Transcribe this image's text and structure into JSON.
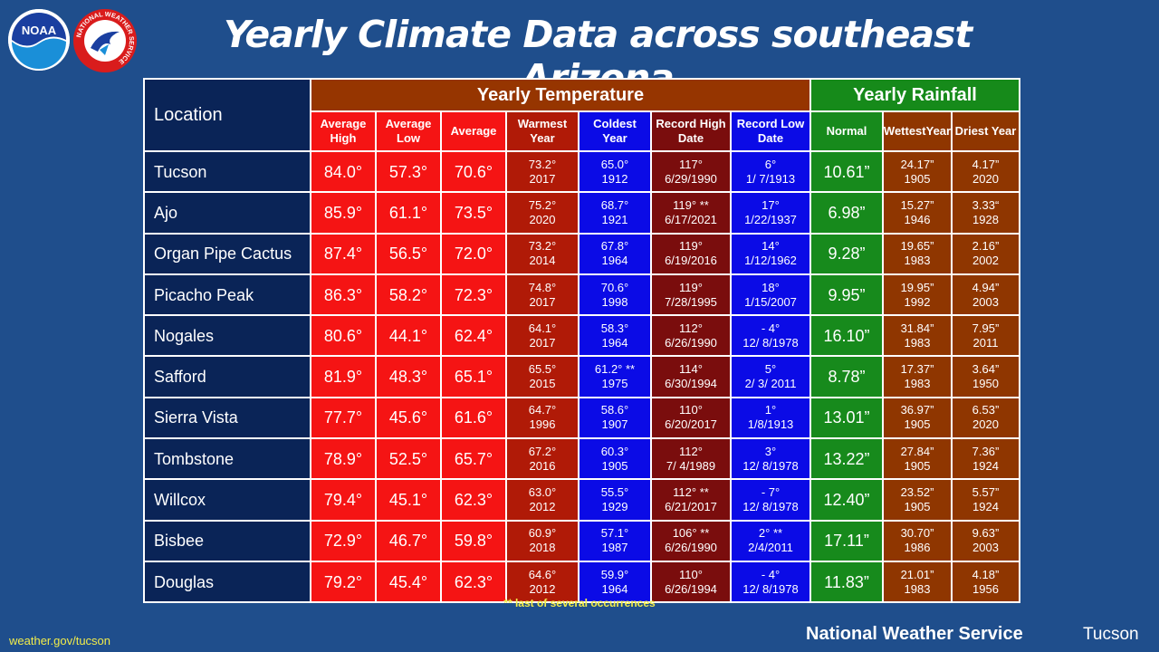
{
  "logos": {
    "noaa_text": "NOAA",
    "nws_ring_text": "NATIONAL WEATHER SERVICE"
  },
  "title": "Yearly Climate Data across southeast Arizona",
  "header": {
    "location": "Location",
    "temperature_group": "Yearly Temperature",
    "rainfall_group": "Yearly Rainfall",
    "columns": [
      "Average High",
      "Average Low",
      "Average",
      "Warmest Year",
      "Coldest Year",
      "Record High Date",
      "Record Low Date",
      "Normal",
      "WettestYear",
      "Driest Year"
    ]
  },
  "rows": [
    {
      "location": "Tucson",
      "avg_high": "84.0°",
      "avg_low": "57.3°",
      "avg": "70.6°",
      "warmest": [
        "73.2°",
        "2017"
      ],
      "coldest": [
        "65.0°",
        "1912"
      ],
      "record_high": [
        "117°",
        "6/29/1990"
      ],
      "record_low": [
        "6°",
        "1/ 7/1913"
      ],
      "normal": "10.61”",
      "wettest": [
        "24.17”",
        "1905"
      ],
      "driest": [
        "4.17”",
        "2020"
      ]
    },
    {
      "location": "Ajo",
      "avg_high": "85.9°",
      "avg_low": "61.1°",
      "avg": "73.5°",
      "warmest": [
        "75.2°",
        "2020"
      ],
      "coldest": [
        "68.7°",
        "1921"
      ],
      "record_high": [
        "119° **",
        "6/17/2021"
      ],
      "record_low": [
        "17°",
        "1/22/1937"
      ],
      "normal": "6.98”",
      "wettest": [
        "15.27”",
        "1946"
      ],
      "driest": [
        "3.33“",
        "1928"
      ]
    },
    {
      "location": "Organ Pipe Cactus",
      "avg_high": "87.4°",
      "avg_low": "56.5°",
      "avg": "72.0°",
      "warmest": [
        "73.2°",
        "2014"
      ],
      "coldest": [
        "67.8°",
        "1964"
      ],
      "record_high": [
        "119°",
        "6/19/2016"
      ],
      "record_low": [
        "14°",
        "1/12/1962"
      ],
      "normal": "9.28”",
      "wettest": [
        "19.65”",
        "1983"
      ],
      "driest": [
        "2.16”",
        "2002"
      ]
    },
    {
      "location": "Picacho Peak",
      "avg_high": "86.3°",
      "avg_low": "58.2°",
      "avg": "72.3°",
      "warmest": [
        "74.8°",
        "2017"
      ],
      "coldest": [
        "70.6°",
        "1998"
      ],
      "record_high": [
        "119°",
        "7/28/1995"
      ],
      "record_low": [
        "18°",
        "1/15/2007"
      ],
      "normal": "9.95”",
      "wettest": [
        "19.95”",
        "1992"
      ],
      "driest": [
        "4.94”",
        "2003"
      ]
    },
    {
      "location": "Nogales",
      "avg_high": "80.6°",
      "avg_low": "44.1°",
      "avg": "62.4°",
      "warmest": [
        "64.1°",
        "2017"
      ],
      "coldest": [
        "58.3°",
        "1964"
      ],
      "record_high": [
        "112°",
        "6/26/1990"
      ],
      "record_low": [
        "- 4°",
        "12/ 8/1978"
      ],
      "normal": "16.10”",
      "wettest": [
        "31.84”",
        "1983"
      ],
      "driest": [
        "7.95”",
        "2011"
      ]
    },
    {
      "location": "Safford",
      "avg_high": "81.9°",
      "avg_low": "48.3°",
      "avg": "65.1°",
      "warmest": [
        "65.5°",
        "2015"
      ],
      "coldest": [
        "61.2° **",
        "1975"
      ],
      "record_high": [
        "114°",
        "6/30/1994"
      ],
      "record_low": [
        "5°",
        "2/ 3/ 2011"
      ],
      "normal": "8.78”",
      "wettest": [
        "17.37”",
        "1983"
      ],
      "driest": [
        "3.64”",
        "1950"
      ]
    },
    {
      "location": "Sierra Vista",
      "avg_high": "77.7°",
      "avg_low": "45.6°",
      "avg": "61.6°",
      "warmest": [
        "64.7°",
        "1996"
      ],
      "coldest": [
        "58.6°",
        "1907"
      ],
      "record_high": [
        "110°",
        "6/20/2017"
      ],
      "record_low": [
        "1°",
        "1/8/1913"
      ],
      "normal": "13.01”",
      "wettest": [
        "36.97”",
        "1905"
      ],
      "driest": [
        "6.53”",
        "2020"
      ]
    },
    {
      "location": "Tombstone",
      "avg_high": "78.9°",
      "avg_low": "52.5°",
      "avg": "65.7°",
      "warmest": [
        "67.2°",
        "2016"
      ],
      "coldest": [
        "60.3°",
        "1905"
      ],
      "record_high": [
        "112°",
        "7/ 4/1989"
      ],
      "record_low": [
        "3°",
        "12/ 8/1978"
      ],
      "normal": "13.22”",
      "wettest": [
        "27.84”",
        "1905"
      ],
      "driest": [
        "7.36”",
        "1924"
      ]
    },
    {
      "location": "Willcox",
      "avg_high": "79.4°",
      "avg_low": "45.1°",
      "avg": "62.3°",
      "warmest": [
        "63.0°",
        "2012"
      ],
      "coldest": [
        "55.5°",
        "1929"
      ],
      "record_high": [
        "112° **",
        "6/21/2017"
      ],
      "record_low": [
        "- 7°",
        "12/ 8/1978"
      ],
      "normal": "12.40”",
      "wettest": [
        "23.52”",
        "1905"
      ],
      "driest": [
        "5.57”",
        "1924"
      ]
    },
    {
      "location": "Bisbee",
      "avg_high": "72.9°",
      "avg_low": "46.7°",
      "avg": "59.8°",
      "warmest": [
        "60.9°",
        "2018"
      ],
      "coldest": [
        "57.1°",
        "1987"
      ],
      "record_high": [
        "106° **",
        "6/26/1990"
      ],
      "record_low": [
        "2° **",
        "2/4/2011"
      ],
      "normal": "17.11”",
      "wettest": [
        "30.70”",
        "1986"
      ],
      "driest": [
        "9.63”",
        "2003"
      ]
    },
    {
      "location": "Douglas",
      "avg_high": "79.2°",
      "avg_low": "45.4°",
      "avg": "62.3°",
      "warmest": [
        "64.6°",
        "2012"
      ],
      "coldest": [
        "59.9°",
        "1964"
      ],
      "record_high": [
        "110°",
        "6/26/1994"
      ],
      "record_low": [
        "- 4°",
        "12/ 8/1978"
      ],
      "normal": "11.83”",
      "wettest": [
        "21.01”",
        "1983"
      ],
      "driest": [
        "4.18”",
        "1956"
      ]
    }
  ],
  "footnote": "** last of several occurrences",
  "footer": {
    "url": "weather.gov/tucson",
    "org": "National Weather Service",
    "office": "Tucson"
  },
  "colors": {
    "background": "#1f4e8c",
    "location_column": "#0a2457",
    "temperature_header": "#963500",
    "rainfall_header": "#168a1a",
    "averages": "#f51414",
    "warmest": "#b01a07",
    "coldest": "#0b0be6",
    "record_high": "#7a0d0d",
    "record_low": "#0b0be6",
    "rain_normal": "#178a1c",
    "rain_extremes": "#8f3600",
    "footnote_text": "#f2ec4a"
  }
}
